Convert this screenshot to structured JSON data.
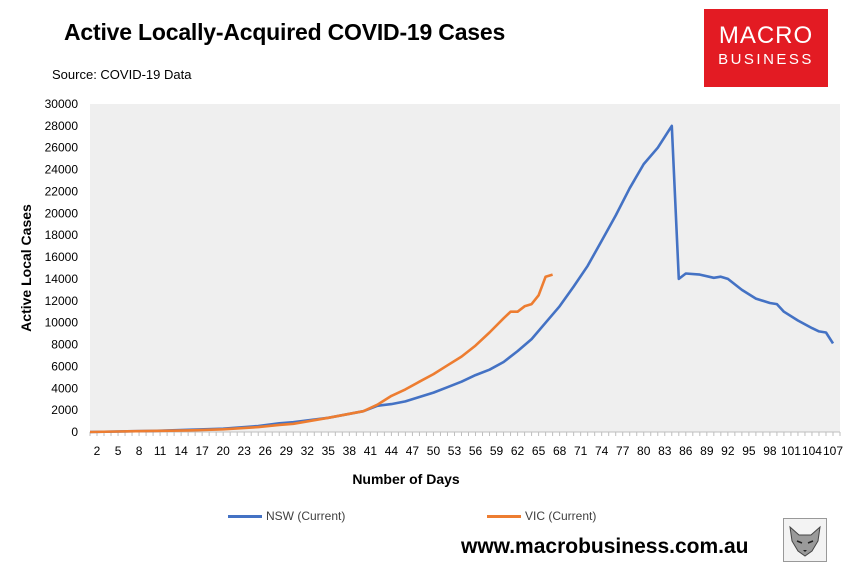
{
  "header": {
    "title": "Active Locally-Acquired COVID-19 Cases",
    "source": "Source: COVID-19 Data"
  },
  "logo": {
    "line1": "MACRO",
    "line2": "BUSINESS"
  },
  "footer": {
    "website": "www.macrobusiness.com.au"
  },
  "chart_data": {
    "type": "line",
    "xlabel": "Number of Days",
    "ylabel": "Active Local Cases",
    "xlim": [
      1,
      108
    ],
    "ylim": [
      0,
      30000
    ],
    "yticks": [
      0,
      2000,
      4000,
      6000,
      8000,
      10000,
      12000,
      14000,
      16000,
      18000,
      20000,
      22000,
      24000,
      26000,
      28000,
      30000
    ],
    "xtick_labels": [
      "2",
      "5",
      "8",
      "11",
      "14",
      "17",
      "20",
      "23",
      "26",
      "29",
      "32",
      "35",
      "38",
      "41",
      "44",
      "47",
      "50",
      "53",
      "56",
      "59",
      "62",
      "65",
      "68",
      "71",
      "74",
      "77",
      "80",
      "83",
      "86",
      "89",
      "92",
      "95",
      "98",
      "101",
      "104",
      "107"
    ],
    "grid": false,
    "legend_position": "bottom",
    "series": [
      {
        "name": "NSW (Current)",
        "color": "#4472C4",
        "x": [
          1,
          5,
          10,
          15,
          20,
          25,
          28,
          30,
          35,
          40,
          42,
          44,
          46,
          48,
          50,
          52,
          54,
          56,
          58,
          60,
          62,
          64,
          66,
          68,
          70,
          72,
          74,
          76,
          78,
          80,
          82,
          84,
          85,
          86,
          88,
          90,
          91,
          92,
          94,
          96,
          98,
          99,
          100,
          102,
          104,
          105,
          106,
          107
        ],
        "y": [
          0,
          50,
          100,
          200,
          300,
          550,
          800,
          900,
          1300,
          1900,
          2400,
          2550,
          2800,
          3200,
          3600,
          4100,
          4600,
          5200,
          5700,
          6400,
          7400,
          8500,
          10000,
          11500,
          13300,
          15200,
          17500,
          19800,
          22300,
          24500,
          26000,
          28000,
          14000,
          14500,
          14400,
          14100,
          14200,
          14000,
          13000,
          12200,
          11800,
          11700,
          11000,
          10200,
          9500,
          9200,
          9100,
          8100
        ]
      },
      {
        "name": "VIC (Current)",
        "color": "#ED7D31",
        "x": [
          1,
          5,
          10,
          15,
          20,
          25,
          28,
          30,
          35,
          40,
          42,
          44,
          46,
          48,
          50,
          52,
          54,
          56,
          58,
          60,
          61,
          62,
          63,
          64,
          65,
          66,
          67
        ],
        "y": [
          0,
          50,
          100,
          150,
          250,
          450,
          650,
          750,
          1300,
          1900,
          2500,
          3300,
          3900,
          4600,
          5300,
          6100,
          6900,
          7900,
          9100,
          10400,
          11000,
          11000,
          11500,
          11700,
          12500,
          14200,
          14400
        ]
      }
    ]
  }
}
